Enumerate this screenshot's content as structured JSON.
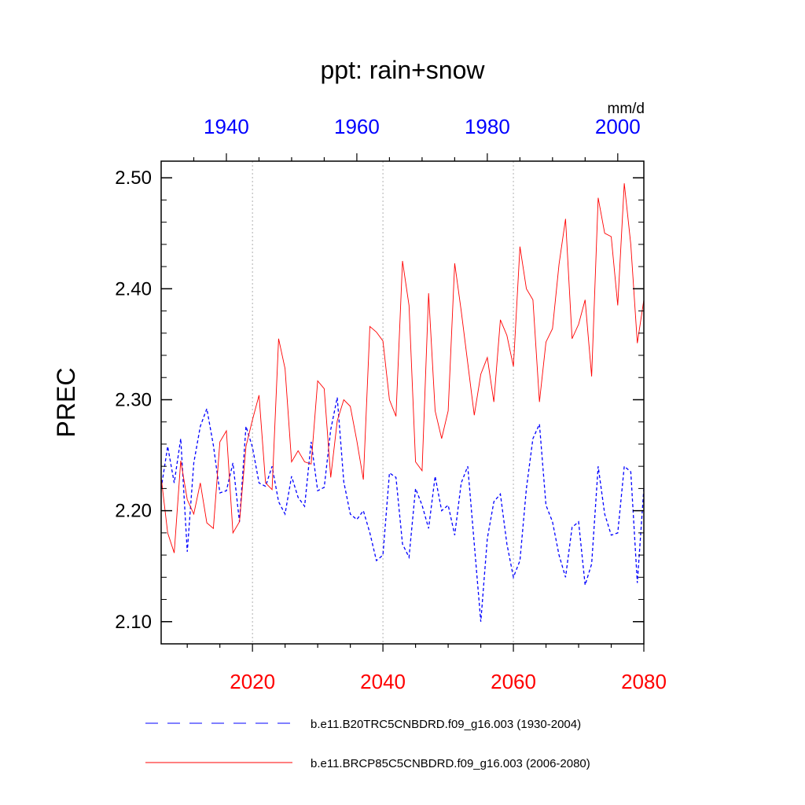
{
  "chart_data": {
    "type": "line",
    "title": "ppt: rain+snow",
    "ylabel": "PREC",
    "units": "mm/d",
    "ylim": [
      2.08,
      2.515
    ],
    "yticks": [
      "2.10",
      "2.20",
      "2.30",
      "2.40",
      "2.50"
    ],
    "ytick_values": [
      2.1,
      2.2,
      2.3,
      2.4,
      2.5
    ],
    "x_bottom": {
      "lim": [
        2006,
        2080
      ],
      "ticks": [
        "2020",
        "2040",
        "2060",
        "2080"
      ],
      "tick_values": [
        2020,
        2040,
        2060,
        2080
      ],
      "color": "#ff0000"
    },
    "x_top": {
      "lim": [
        1930,
        2004
      ],
      "ticks": [
        "1940",
        "1960",
        "1980",
        "2000"
      ],
      "tick_values": [
        1940,
        1960,
        1980,
        2000
      ],
      "color": "#0000ff"
    },
    "grid": "vertical dotted at major x ticks",
    "legend_position": "bottom",
    "series": [
      {
        "name": "b.e11.B20TRC5CNBDRD.f09_g16.003 (1930-2004)",
        "axis": "top",
        "color": "#0000ff",
        "style": "dashed",
        "x_start": 1930,
        "values": [
          2.22,
          2.258,
          2.225,
          2.265,
          2.163,
          2.243,
          2.276,
          2.292,
          2.259,
          2.216,
          2.218,
          2.243,
          2.19,
          2.276,
          2.257,
          2.225,
          2.222,
          2.24,
          2.208,
          2.197,
          2.231,
          2.212,
          2.204,
          2.262,
          2.218,
          2.221,
          2.273,
          2.302,
          2.226,
          2.197,
          2.192,
          2.2,
          2.18,
          2.155,
          2.16,
          2.234,
          2.23,
          2.17,
          2.158,
          2.22,
          2.205,
          2.184,
          2.231,
          2.2,
          2.205,
          2.178,
          2.225,
          2.24,
          2.17,
          2.1,
          2.175,
          2.208,
          2.215,
          2.17,
          2.14,
          2.155,
          2.22,
          2.265,
          2.278,
          2.205,
          2.19,
          2.16,
          2.14,
          2.185,
          2.19,
          2.133,
          2.152,
          2.24,
          2.197,
          2.178,
          2.18,
          2.24,
          2.235,
          2.135,
          2.22
        ]
      },
      {
        "name": "b.e11.BRCP85C5CNBDRD.f09_g16.003 (2006-2080)",
        "axis": "bottom",
        "color": "#ff0000",
        "style": "solid",
        "x_start": 2006,
        "values": [
          2.23,
          2.18,
          2.162,
          2.245,
          2.21,
          2.197,
          2.225,
          2.189,
          2.184,
          2.262,
          2.272,
          2.18,
          2.19,
          2.258,
          2.282,
          2.304,
          2.225,
          2.219,
          2.355,
          2.328,
          2.244,
          2.254,
          2.244,
          2.242,
          2.317,
          2.31,
          2.23,
          2.281,
          2.3,
          2.294,
          2.263,
          2.228,
          2.366,
          2.361,
          2.353,
          2.3,
          2.285,
          2.425,
          2.385,
          2.244,
          2.236,
          2.396,
          2.29,
          2.265,
          2.29,
          2.423,
          2.38,
          2.333,
          2.286,
          2.323,
          2.338,
          2.298,
          2.372,
          2.358,
          2.33,
          2.438,
          2.4,
          2.39,
          2.298,
          2.352,
          2.364,
          2.422,
          2.463,
          2.355,
          2.368,
          2.39,
          2.321,
          2.482,
          2.45,
          2.447,
          2.385,
          2.495,
          2.44,
          2.351,
          2.39
        ]
      }
    ]
  }
}
